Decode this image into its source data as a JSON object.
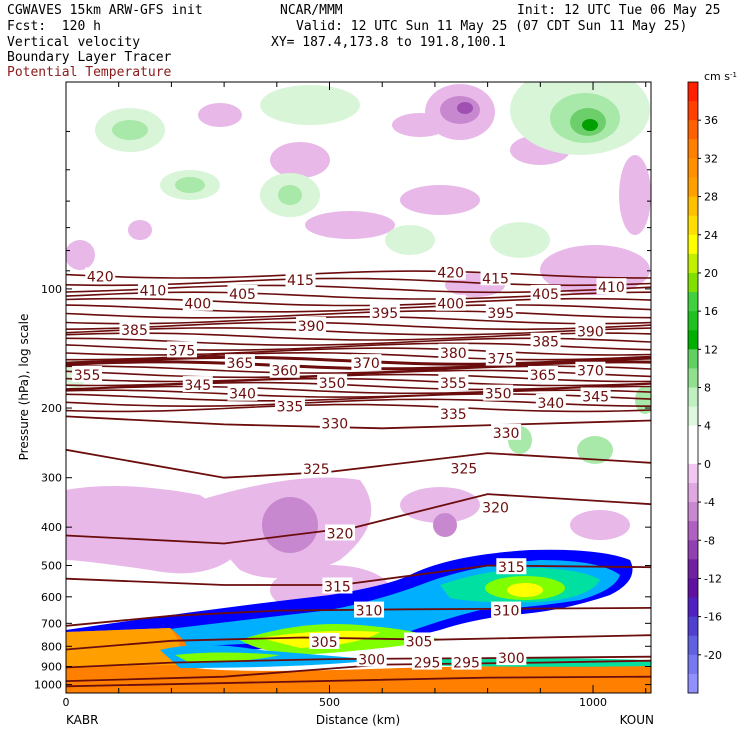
{
  "header": {
    "line1_left": "CGWAVES 15km ARW-GFS init",
    "line1_center": "NCAR/MMM",
    "line1_right": "Init: 12 UTC Tue 06 May 25",
    "line2_left": "Fcst:  120 h",
    "line2_right": "Valid: 12 UTC Sun 11 May 25 (07 CDT Sun 11 May 25)",
    "line3_left": "Vertical velocity",
    "line3_right": "XY= 187.4,173.8 to 191.8,100.1",
    "line4_left": "Boundary Layer Tracer",
    "line5_left": "Potential Temperature"
  },
  "colors": {
    "theta_contour": "#6b0d0d",
    "positive_shades": [
      "#d8f5d8",
      "#a8e8a8",
      "#6ccf6c",
      "#2cb82c",
      "#00a000",
      "#a0e000",
      "#ffff00",
      "#ffd000",
      "#ffa000",
      "#ff8000",
      "#ff5000",
      "#ff2000"
    ],
    "negative_shades": [
      "#e8b8e8",
      "#c888d0",
      "#a050b0",
      "#8000a0",
      "#6a20c0",
      "#6868e0",
      "#9898ff"
    ],
    "tracer": [
      "#0000ff",
      "#00b0ff",
      "#00e0a0",
      "#80ff00"
    ]
  },
  "chart_data": {
    "type": "cross-section",
    "xlabel": "Distance (km)",
    "ylabel": "Pressure (hPa), log scale",
    "x_endpoints": [
      "KABR",
      "KOUN"
    ],
    "x_ticks": [
      0,
      500,
      1000
    ],
    "xlim": [
      0,
      1110
    ],
    "y_scale": "log",
    "y_ticks": [
      100,
      200,
      300,
      400,
      500,
      600,
      700,
      800,
      900,
      1000
    ],
    "ylim": [
      1050,
      30
    ],
    "colorbar": {
      "unit": "cm s",
      "unit_exp": "-1",
      "ticks": [
        36,
        32,
        28,
        24,
        20,
        16,
        12,
        8,
        4,
        0,
        -4,
        -8,
        -12,
        -16,
        -20
      ]
    },
    "theta_labels": [
      {
        "v": "420",
        "x": 65,
        "p": 93
      },
      {
        "v": "410",
        "x": 165,
        "p": 101
      },
      {
        "v": "400",
        "x": 250,
        "p": 109
      },
      {
        "v": "405",
        "x": 335,
        "p": 103
      },
      {
        "v": "415",
        "x": 445,
        "p": 95
      },
      {
        "v": "390",
        "x": 465,
        "p": 124
      },
      {
        "v": "385",
        "x": 130,
        "p": 127
      },
      {
        "v": "375",
        "x": 220,
        "p": 143
      },
      {
        "v": "365",
        "x": 330,
        "p": 154
      },
      {
        "v": "360",
        "x": 415,
        "p": 161
      },
      {
        "v": "355",
        "x": 40,
        "p": 165
      },
      {
        "v": "350",
        "x": 505,
        "p": 173
      },
      {
        "v": "345",
        "x": 250,
        "p": 175
      },
      {
        "v": "340",
        "x": 335,
        "p": 184
      },
      {
        "v": "335",
        "x": 425,
        "p": 198
      },
      {
        "v": "330",
        "x": 510,
        "p": 219
      },
      {
        "v": "325",
        "x": 475,
        "p": 285
      },
      {
        "v": "420",
        "x": 730,
        "p": 91
      },
      {
        "v": "415",
        "x": 815,
        "p": 94
      },
      {
        "v": "400",
        "x": 730,
        "p": 109
      },
      {
        "v": "395",
        "x": 605,
        "p": 115
      },
      {
        "v": "395",
        "x": 825,
        "p": 115
      },
      {
        "v": "405",
        "x": 910,
        "p": 103
      },
      {
        "v": "410",
        "x": 1035,
        "p": 99
      },
      {
        "v": "390",
        "x": 995,
        "p": 128
      },
      {
        "v": "385",
        "x": 910,
        "p": 136
      },
      {
        "v": "380",
        "x": 735,
        "p": 145
      },
      {
        "v": "375",
        "x": 825,
        "p": 150
      },
      {
        "v": "370",
        "x": 570,
        "p": 154
      },
      {
        "v": "365",
        "x": 905,
        "p": 165
      },
      {
        "v": "370",
        "x": 995,
        "p": 161
      },
      {
        "v": "355",
        "x": 735,
        "p": 173
      },
      {
        "v": "350",
        "x": 820,
        "p": 184
      },
      {
        "v": "340",
        "x": 920,
        "p": 194
      },
      {
        "v": "345",
        "x": 1005,
        "p": 187
      },
      {
        "v": "335",
        "x": 735,
        "p": 207
      },
      {
        "v": "330",
        "x": 835,
        "p": 231
      },
      {
        "v": "325",
        "x": 755,
        "p": 284
      },
      {
        "v": "320",
        "x": 520,
        "p": 415
      },
      {
        "v": "320",
        "x": 815,
        "p": 357
      },
      {
        "v": "315",
        "x": 515,
        "p": 565
      },
      {
        "v": "315",
        "x": 845,
        "p": 505
      },
      {
        "v": "310",
        "x": 575,
        "p": 650
      },
      {
        "v": "310",
        "x": 835,
        "p": 650
      },
      {
        "v": "305",
        "x": 490,
        "p": 780
      },
      {
        "v": "305",
        "x": 670,
        "p": 778
      },
      {
        "v": "300",
        "x": 580,
        "p": 863
      },
      {
        "v": "300",
        "x": 845,
        "p": 857
      },
      {
        "v": "295",
        "x": 685,
        "p": 880
      },
      {
        "v": "295",
        "x": 760,
        "p": 880
      }
    ]
  }
}
